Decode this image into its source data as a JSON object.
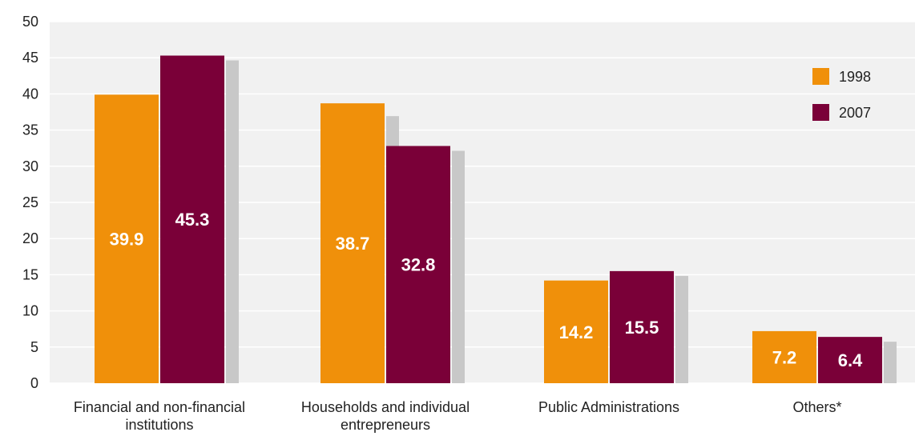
{
  "chart_data": {
    "type": "bar",
    "categories": [
      [
        "Financial and non-financial",
        "institutions"
      ],
      [
        "Households and individual",
        "entrepreneurs"
      ],
      [
        "Public Administrations"
      ],
      [
        "Others*"
      ]
    ],
    "series": [
      {
        "name": "1998",
        "color": "#F0900A",
        "values": [
          39.9,
          38.7,
          14.2,
          7.2
        ]
      },
      {
        "name": "2007",
        "color": "#7A0038",
        "values": [
          45.3,
          32.8,
          15.5,
          6.4
        ]
      }
    ],
    "ylim": [
      0,
      50
    ],
    "yticks": [
      0,
      5,
      10,
      15,
      20,
      25,
      30,
      35,
      40,
      45,
      50
    ],
    "grid": true,
    "legend_position": "top-right",
    "plot_background": "#f1f1f1",
    "shadow_color": "#c8c8c8"
  }
}
